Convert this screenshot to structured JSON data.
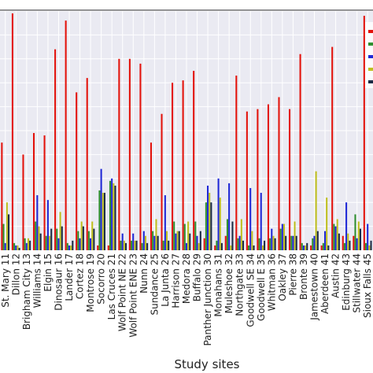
{
  "chart_data": {
    "type": "bar",
    "title": "",
    "xlabel": "Study sites",
    "ylabel": "",
    "grid": true,
    "legend_position": "top-right",
    "ylim": [
      0,
      100
    ],
    "categories": [
      "St. Mary 11",
      "Dillon 12",
      "Brigham City 13",
      "Williams 14",
      "Elgin 15",
      "Dinosaur 16",
      "Lander 17",
      "Cortez 18",
      "Montrose 19",
      "Socorro 20",
      "Las Cruces 21",
      "Wolf Point NE 22",
      "Wolf Point ENE 23",
      "Nunn 24",
      "Sundance 25",
      "La Junta 26",
      "Harrison 27",
      "Medora 28",
      "Buffalo 29",
      "Panther Junction 30",
      "Monahans 31",
      "Muleshoe 32",
      "Northgate 33",
      "Goodwell SE 34",
      "Goodwell E 35",
      "Whitman 36",
      "Oakley 37",
      "Pierre 38",
      "Bronte 39",
      "Jamestown 40",
      "Aberdeen 41",
      "Austin 42",
      "Edinburg 43",
      "Stillwater 44",
      "Sioux Falls 45"
    ],
    "series": [
      {
        "name": "",
        "color": "#e3120b",
        "values": [
          45,
          99,
          40,
          49,
          48,
          84,
          96,
          66,
          72,
          2,
          2,
          80,
          80,
          78,
          45,
          57,
          70,
          71,
          75,
          5,
          2,
          6,
          73,
          58,
          59,
          61,
          64,
          59,
          82,
          2,
          2,
          85,
          6,
          6,
          98
        ]
      },
      {
        "name": "",
        "color": "#2f8f2f",
        "values": [
          11,
          3,
          5,
          12,
          6,
          9,
          3,
          8,
          8,
          25,
          29,
          4,
          4,
          3,
          8,
          4,
          12,
          11,
          12,
          20,
          4,
          13,
          5,
          2,
          5,
          5,
          9,
          6,
          3,
          5,
          3,
          11,
          3,
          15,
          3
        ]
      },
      {
        "name": "",
        "color": "#1f28d6",
        "values": [
          3,
          2,
          3,
          23,
          21,
          5,
          2,
          5,
          5,
          34,
          30,
          7,
          7,
          8,
          6,
          23,
          7,
          3,
          6,
          27,
          30,
          28,
          6,
          26,
          24,
          9,
          11,
          6,
          2,
          6,
          8,
          10,
          20,
          5,
          11
        ]
      },
      {
        "name": "",
        "color": "#bfbf1f",
        "values": [
          20,
          2,
          5,
          10,
          6,
          16,
          2,
          12,
          12,
          24,
          28,
          4,
          4,
          6,
          13,
          8,
          8,
          12,
          3,
          24,
          22,
          2,
          13,
          8,
          2,
          6,
          11,
          12,
          2,
          33,
          22,
          13,
          7,
          12,
          2
        ]
      },
      {
        "name": "",
        "color": "#1b2a44",
        "values": [
          15,
          1,
          4,
          7,
          9,
          10,
          4,
          10,
          9,
          24,
          27,
          3,
          4,
          3,
          6,
          4,
          8,
          7,
          8,
          20,
          3,
          12,
          4,
          2,
          4,
          5,
          6,
          6,
          3,
          8,
          2,
          7,
          4,
          9,
          4
        ]
      }
    ]
  }
}
